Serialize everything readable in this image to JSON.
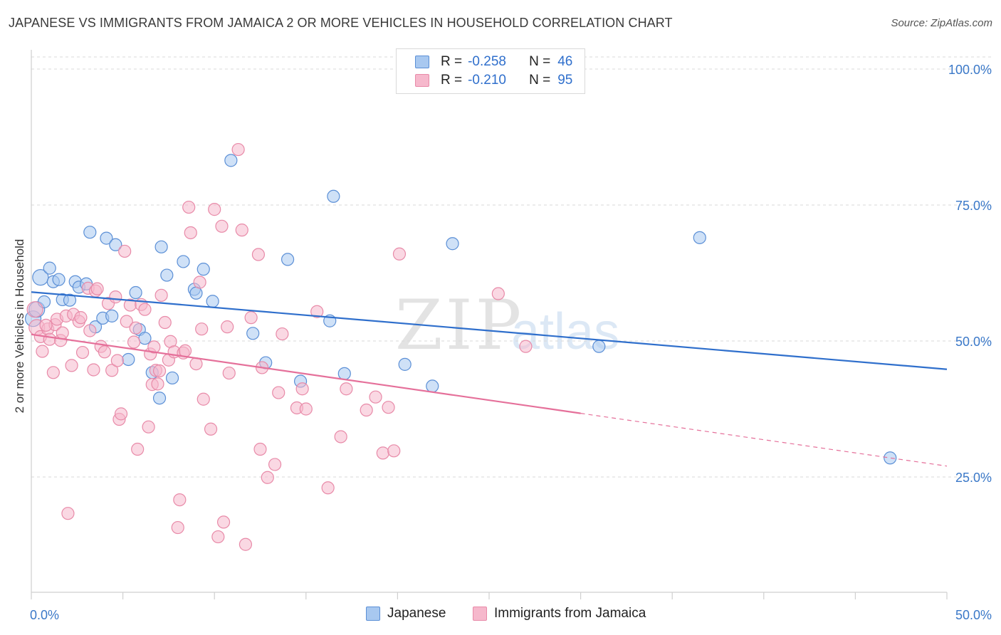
{
  "title": "JAPANESE VS IMMIGRANTS FROM JAMAICA 2 OR MORE VEHICLES IN HOUSEHOLD CORRELATION CHART",
  "source": "Source: ZipAtlas.com",
  "watermark": {
    "zip": "ZIP",
    "atlas": "atlas"
  },
  "colors": {
    "japanese_fill": "#a8c8f0",
    "japanese_stroke": "#5b8fd6",
    "japanese_line": "#2f6fcc",
    "jamaica_fill": "#f6b8cc",
    "jamaica_stroke": "#e88aa8",
    "jamaica_line": "#e5709a",
    "axis_text": "#3a78c8",
    "grid": "#d8d8d8"
  },
  "legend": {
    "r_label": "R =",
    "n_label": "N =",
    "japanese": {
      "r": "-0.258",
      "n": "46"
    },
    "jamaica": {
      "r": "-0.210",
      "n": "95"
    }
  },
  "chart_data": {
    "type": "scatter",
    "title": "JAPANESE VS IMMIGRANTS FROM JAMAICA 2 OR MORE VEHICLES IN HOUSEHOLD CORRELATION CHART",
    "xlabel": "",
    "ylabel": "2 or more Vehicles in Household",
    "xlim": [
      0,
      50
    ],
    "ylim": [
      0,
      104
    ],
    "x_tick_labels": [
      {
        "value": 0,
        "label": "0.0%"
      },
      {
        "value": 50,
        "label": "50.0%"
      }
    ],
    "y_tick_labels": [
      {
        "value": 100,
        "label": "100.0%"
      },
      {
        "value": 75,
        "label": "75.0%"
      },
      {
        "value": 50,
        "label": "50.0%"
      },
      {
        "value": 25,
        "label": "25.0%"
      }
    ],
    "grid": true,
    "legend_position": "top-center",
    "series": [
      {
        "name": "Japanese",
        "r": -0.258,
        "n": 46,
        "trend": {
          "x0": 0,
          "y0": 59.0,
          "x1": 50,
          "y1": 44.8,
          "dashed_from": null
        },
        "points": [
          [
            0.1,
            54.1
          ],
          [
            0.3,
            55.8
          ],
          [
            0.5,
            61.7
          ],
          [
            0.7,
            57.2
          ],
          [
            1.0,
            63.4
          ],
          [
            1.2,
            60.9
          ],
          [
            1.5,
            61.3
          ],
          [
            1.7,
            57.6
          ],
          [
            2.1,
            57.5
          ],
          [
            2.4,
            60.9
          ],
          [
            2.6,
            59.9
          ],
          [
            3.0,
            60.5
          ],
          [
            3.2,
            70.0
          ],
          [
            3.5,
            52.6
          ],
          [
            3.9,
            54.2
          ],
          [
            4.1,
            68.9
          ],
          [
            4.4,
            54.6
          ],
          [
            4.6,
            67.7
          ],
          [
            5.3,
            46.6
          ],
          [
            5.7,
            58.9
          ],
          [
            5.9,
            52.1
          ],
          [
            6.2,
            50.5
          ],
          [
            6.6,
            44.2
          ],
          [
            7.0,
            39.5
          ],
          [
            7.1,
            67.3
          ],
          [
            7.4,
            62.1
          ],
          [
            7.7,
            43.2
          ],
          [
            8.3,
            64.6
          ],
          [
            8.9,
            59.5
          ],
          [
            9.0,
            58.8
          ],
          [
            9.4,
            63.2
          ],
          [
            9.9,
            57.3
          ],
          [
            10.9,
            83.2
          ],
          [
            12.1,
            51.4
          ],
          [
            12.8,
            46.0
          ],
          [
            14.0,
            65.0
          ],
          [
            14.7,
            42.6
          ],
          [
            16.3,
            53.7
          ],
          [
            16.5,
            76.6
          ],
          [
            17.1,
            44.0
          ],
          [
            20.4,
            45.7
          ],
          [
            21.9,
            41.7
          ],
          [
            23.0,
            67.9
          ],
          [
            31.0,
            49.0
          ],
          [
            36.5,
            69.0
          ],
          [
            46.9,
            28.5
          ]
        ]
      },
      {
        "name": "Immigrants from Jamaica",
        "r": -0.21,
        "n": 95,
        "trend": {
          "x0": 0,
          "y0": 51.2,
          "x1": 30.0,
          "y1": 36.7,
          "dashed_to": 50,
          "dashed_y": 27.0
        },
        "points": [
          [
            0.2,
            55.8
          ],
          [
            0.3,
            52.5
          ],
          [
            0.5,
            50.8
          ],
          [
            0.6,
            48.1
          ],
          [
            0.9,
            52.2
          ],
          [
            1.0,
            50.3
          ],
          [
            1.2,
            44.2
          ],
          [
            1.3,
            53.0
          ],
          [
            1.4,
            54.0
          ],
          [
            1.6,
            50.1
          ],
          [
            1.7,
            51.5
          ],
          [
            1.9,
            54.6
          ],
          [
            2.0,
            18.3
          ],
          [
            2.2,
            45.5
          ],
          [
            2.3,
            54.9
          ],
          [
            2.6,
            53.6
          ],
          [
            2.7,
            54.3
          ],
          [
            2.8,
            47.9
          ],
          [
            3.1,
            59.7
          ],
          [
            3.2,
            51.9
          ],
          [
            3.4,
            44.7
          ],
          [
            3.5,
            59.2
          ],
          [
            3.8,
            49.0
          ],
          [
            4.0,
            48.0
          ],
          [
            4.2,
            56.9
          ],
          [
            4.4,
            44.6
          ],
          [
            4.6,
            58.1
          ],
          [
            4.7,
            46.4
          ],
          [
            4.8,
            35.6
          ],
          [
            4.9,
            36.6
          ],
          [
            5.1,
            66.5
          ],
          [
            5.2,
            53.6
          ],
          [
            5.4,
            56.6
          ],
          [
            5.6,
            49.8
          ],
          [
            5.7,
            52.4
          ],
          [
            5.8,
            30.1
          ],
          [
            6.0,
            56.7
          ],
          [
            6.2,
            55.8
          ],
          [
            6.4,
            34.2
          ],
          [
            6.5,
            47.6
          ],
          [
            6.6,
            42.0
          ],
          [
            6.7,
            48.9
          ],
          [
            6.8,
            44.6
          ],
          [
            7.0,
            44.5
          ],
          [
            7.1,
            58.4
          ],
          [
            7.3,
            53.4
          ],
          [
            7.5,
            46.5
          ],
          [
            7.6,
            49.9
          ],
          [
            7.8,
            48.0
          ],
          [
            8.0,
            15.7
          ],
          [
            8.1,
            20.8
          ],
          [
            8.3,
            47.8
          ],
          [
            8.4,
            48.2
          ],
          [
            8.6,
            74.6
          ],
          [
            8.7,
            69.9
          ],
          [
            9.0,
            45.8
          ],
          [
            9.2,
            60.8
          ],
          [
            9.3,
            52.2
          ],
          [
            9.4,
            39.3
          ],
          [
            9.8,
            33.8
          ],
          [
            10.0,
            74.2
          ],
          [
            10.2,
            14.0
          ],
          [
            10.4,
            71.1
          ],
          [
            10.5,
            16.7
          ],
          [
            10.7,
            52.6
          ],
          [
            10.8,
            44.1
          ],
          [
            11.3,
            85.2
          ],
          [
            11.5,
            70.4
          ],
          [
            11.7,
            12.6
          ],
          [
            12.0,
            54.3
          ],
          [
            12.4,
            65.9
          ],
          [
            12.5,
            30.1
          ],
          [
            12.6,
            45.1
          ],
          [
            12.9,
            24.9
          ],
          [
            13.3,
            27.3
          ],
          [
            13.5,
            40.5
          ],
          [
            13.7,
            51.3
          ],
          [
            14.5,
            37.7
          ],
          [
            14.8,
            41.2
          ],
          [
            15.0,
            37.5
          ],
          [
            15.6,
            55.4
          ],
          [
            16.2,
            23.0
          ],
          [
            16.9,
            32.4
          ],
          [
            17.2,
            41.2
          ],
          [
            18.3,
            37.3
          ],
          [
            18.8,
            39.7
          ],
          [
            19.2,
            29.4
          ],
          [
            19.5,
            37.8
          ],
          [
            19.8,
            29.8
          ],
          [
            20.1,
            66.0
          ],
          [
            25.5,
            58.7
          ],
          [
            27.0,
            49.0
          ],
          [
            0.8,
            52.9
          ],
          [
            3.6,
            59.6
          ],
          [
            6.9,
            42.1
          ]
        ]
      }
    ]
  },
  "bottom_legend": {
    "japanese": "Japanese",
    "jamaica": "Immigrants from Jamaica"
  }
}
